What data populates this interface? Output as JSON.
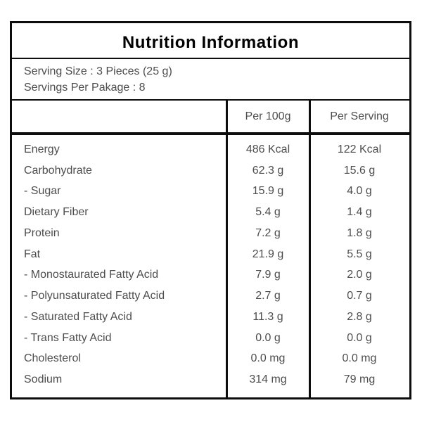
{
  "title": "Nutrition Information",
  "serving_info": {
    "serving_size": "Serving Size : 3 Pieces (25 g)",
    "servings_per_package": "Servings Per Pakage : 8"
  },
  "columns": {
    "per_100g": "Per 100g",
    "per_serving": "Per Serving"
  },
  "rows": [
    {
      "label": "Energy",
      "per_100g": "486 Kcal",
      "per_serving": "122 Kcal"
    },
    {
      "label": "Carbohydrate",
      "per_100g": "62.3 g",
      "per_serving": "15.6 g"
    },
    {
      "label": "- Sugar",
      "per_100g": "15.9 g",
      "per_serving": "4.0 g"
    },
    {
      "label": "Dietary Fiber",
      "per_100g": "5.4 g",
      "per_serving": "1.4 g"
    },
    {
      "label": "Protein",
      "per_100g": "7.2 g",
      "per_serving": "1.8 g"
    },
    {
      "label": "Fat",
      "per_100g": "21.9 g",
      "per_serving": "5.5 g"
    },
    {
      "label": "- Monostaurated Fatty Acid",
      "per_100g": "7.9 g",
      "per_serving": "2.0 g"
    },
    {
      "label": "- Polyunsaturated Fatty Acid",
      "per_100g": "2.7 g",
      "per_serving": "0.7 g"
    },
    {
      "label": "- Saturated Fatty Acid",
      "per_100g": "11.3 g",
      "per_serving": "2.8 g"
    },
    {
      "label": "- Trans Fatty Acid",
      "per_100g": "0.0 g",
      "per_serving": "0.0 g"
    },
    {
      "label": "Cholesterol",
      "per_100g": "0.0 mg",
      "per_serving": "0.0 mg"
    },
    {
      "label": "Sodium",
      "per_100g": "314 mg",
      "per_serving": "79 mg"
    }
  ],
  "colors": {
    "border": "#0d0d0d",
    "text": "#4d4d4d",
    "title": "#000000",
    "background": "#ffffff"
  }
}
